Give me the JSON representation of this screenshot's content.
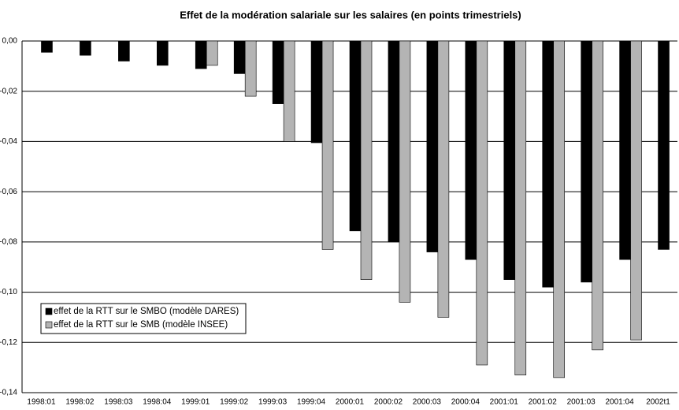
{
  "chart_data": {
    "type": "bar",
    "title": "Effet de la modération salariale sur les salaires (en points  trimestriels)",
    "categories": [
      "1998:01",
      "1998:02",
      "1998:03",
      "1998:04",
      "1999:01",
      "1999:02",
      "1999:03",
      "1999:04",
      "2000:01",
      "2000:02",
      "2000:03",
      "2000:04",
      "2001:01",
      "2001:02",
      "2001:03",
      "2001:04",
      "2002t1"
    ],
    "series": [
      {
        "name": "effet de la RTT sur le SMBO (modèle DARES)",
        "color": "#000000",
        "values": [
          -0.0045,
          -0.0057,
          -0.008,
          -0.0097,
          -0.011,
          -0.013,
          -0.025,
          -0.0405,
          -0.0756,
          -0.08,
          -0.084,
          -0.087,
          -0.095,
          -0.098,
          -0.096,
          -0.087,
          -0.083
        ]
      },
      {
        "name": "effet de la RTT sur le SMB (modèle INSEE)",
        "color": "#b4b4b4",
        "values": [
          null,
          null,
          null,
          null,
          -0.0097,
          -0.022,
          -0.04,
          -0.083,
          -0.095,
          -0.104,
          -0.11,
          -0.129,
          -0.133,
          -0.134,
          -0.123,
          -0.119,
          null
        ]
      }
    ],
    "ylim": [
      -0.14,
      0
    ],
    "yticks": [
      {
        "value": 0,
        "label": "0,00"
      },
      {
        "value": -0.02,
        "label": "-0,02"
      },
      {
        "value": -0.04,
        "label": "-0,04"
      },
      {
        "value": -0.06,
        "label": "-0,06"
      },
      {
        "value": -0.08,
        "label": "-0,08"
      },
      {
        "value": -0.1,
        "label": "-0,10"
      },
      {
        "value": -0.12,
        "label": "-0,12"
      },
      {
        "value": -0.14,
        "label": "-0,14"
      }
    ],
    "grid": true,
    "legend": "center left"
  }
}
